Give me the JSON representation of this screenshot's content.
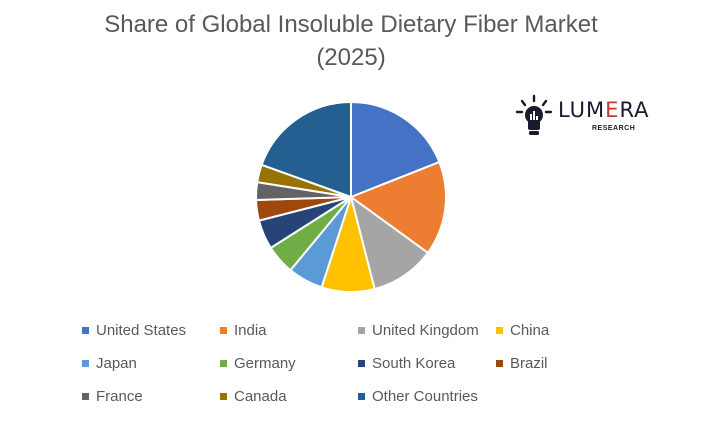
{
  "chart_data": {
    "type": "pie",
    "title_lines": [
      "Share of Global Insoluble Dietary Fiber Market",
      "(2025)"
    ],
    "slices": [
      {
        "label": "United States",
        "value": 19,
        "color": "#4472C4"
      },
      {
        "label": "India",
        "value": 16,
        "color": "#ED7D31"
      },
      {
        "label": "United Kingdom",
        "value": 11,
        "color": "#A5A5A5"
      },
      {
        "label": "China",
        "value": 9,
        "color": "#FFC000"
      },
      {
        "label": "Japan",
        "value": 6,
        "color": "#5B9BD5"
      },
      {
        "label": "Germany",
        "value": 5,
        "color": "#70AD47"
      },
      {
        "label": "South Korea",
        "value": 5,
        "color": "#264478"
      },
      {
        "label": "Brazil",
        "value": 3.5,
        "color": "#9E480E"
      },
      {
        "label": "France",
        "value": 3,
        "color": "#636363"
      },
      {
        "label": "Canada",
        "value": 3,
        "color": "#997300"
      },
      {
        "label": "Other Countries",
        "value": 19.5,
        "color": "#255E91"
      }
    ],
    "legend_position": "bottom"
  },
  "logo": {
    "word_part1": "LUM",
    "word_part2": "E",
    "word_part3": "RA",
    "sub": "RESEARCH",
    "icon": "lightbulb-icon"
  }
}
